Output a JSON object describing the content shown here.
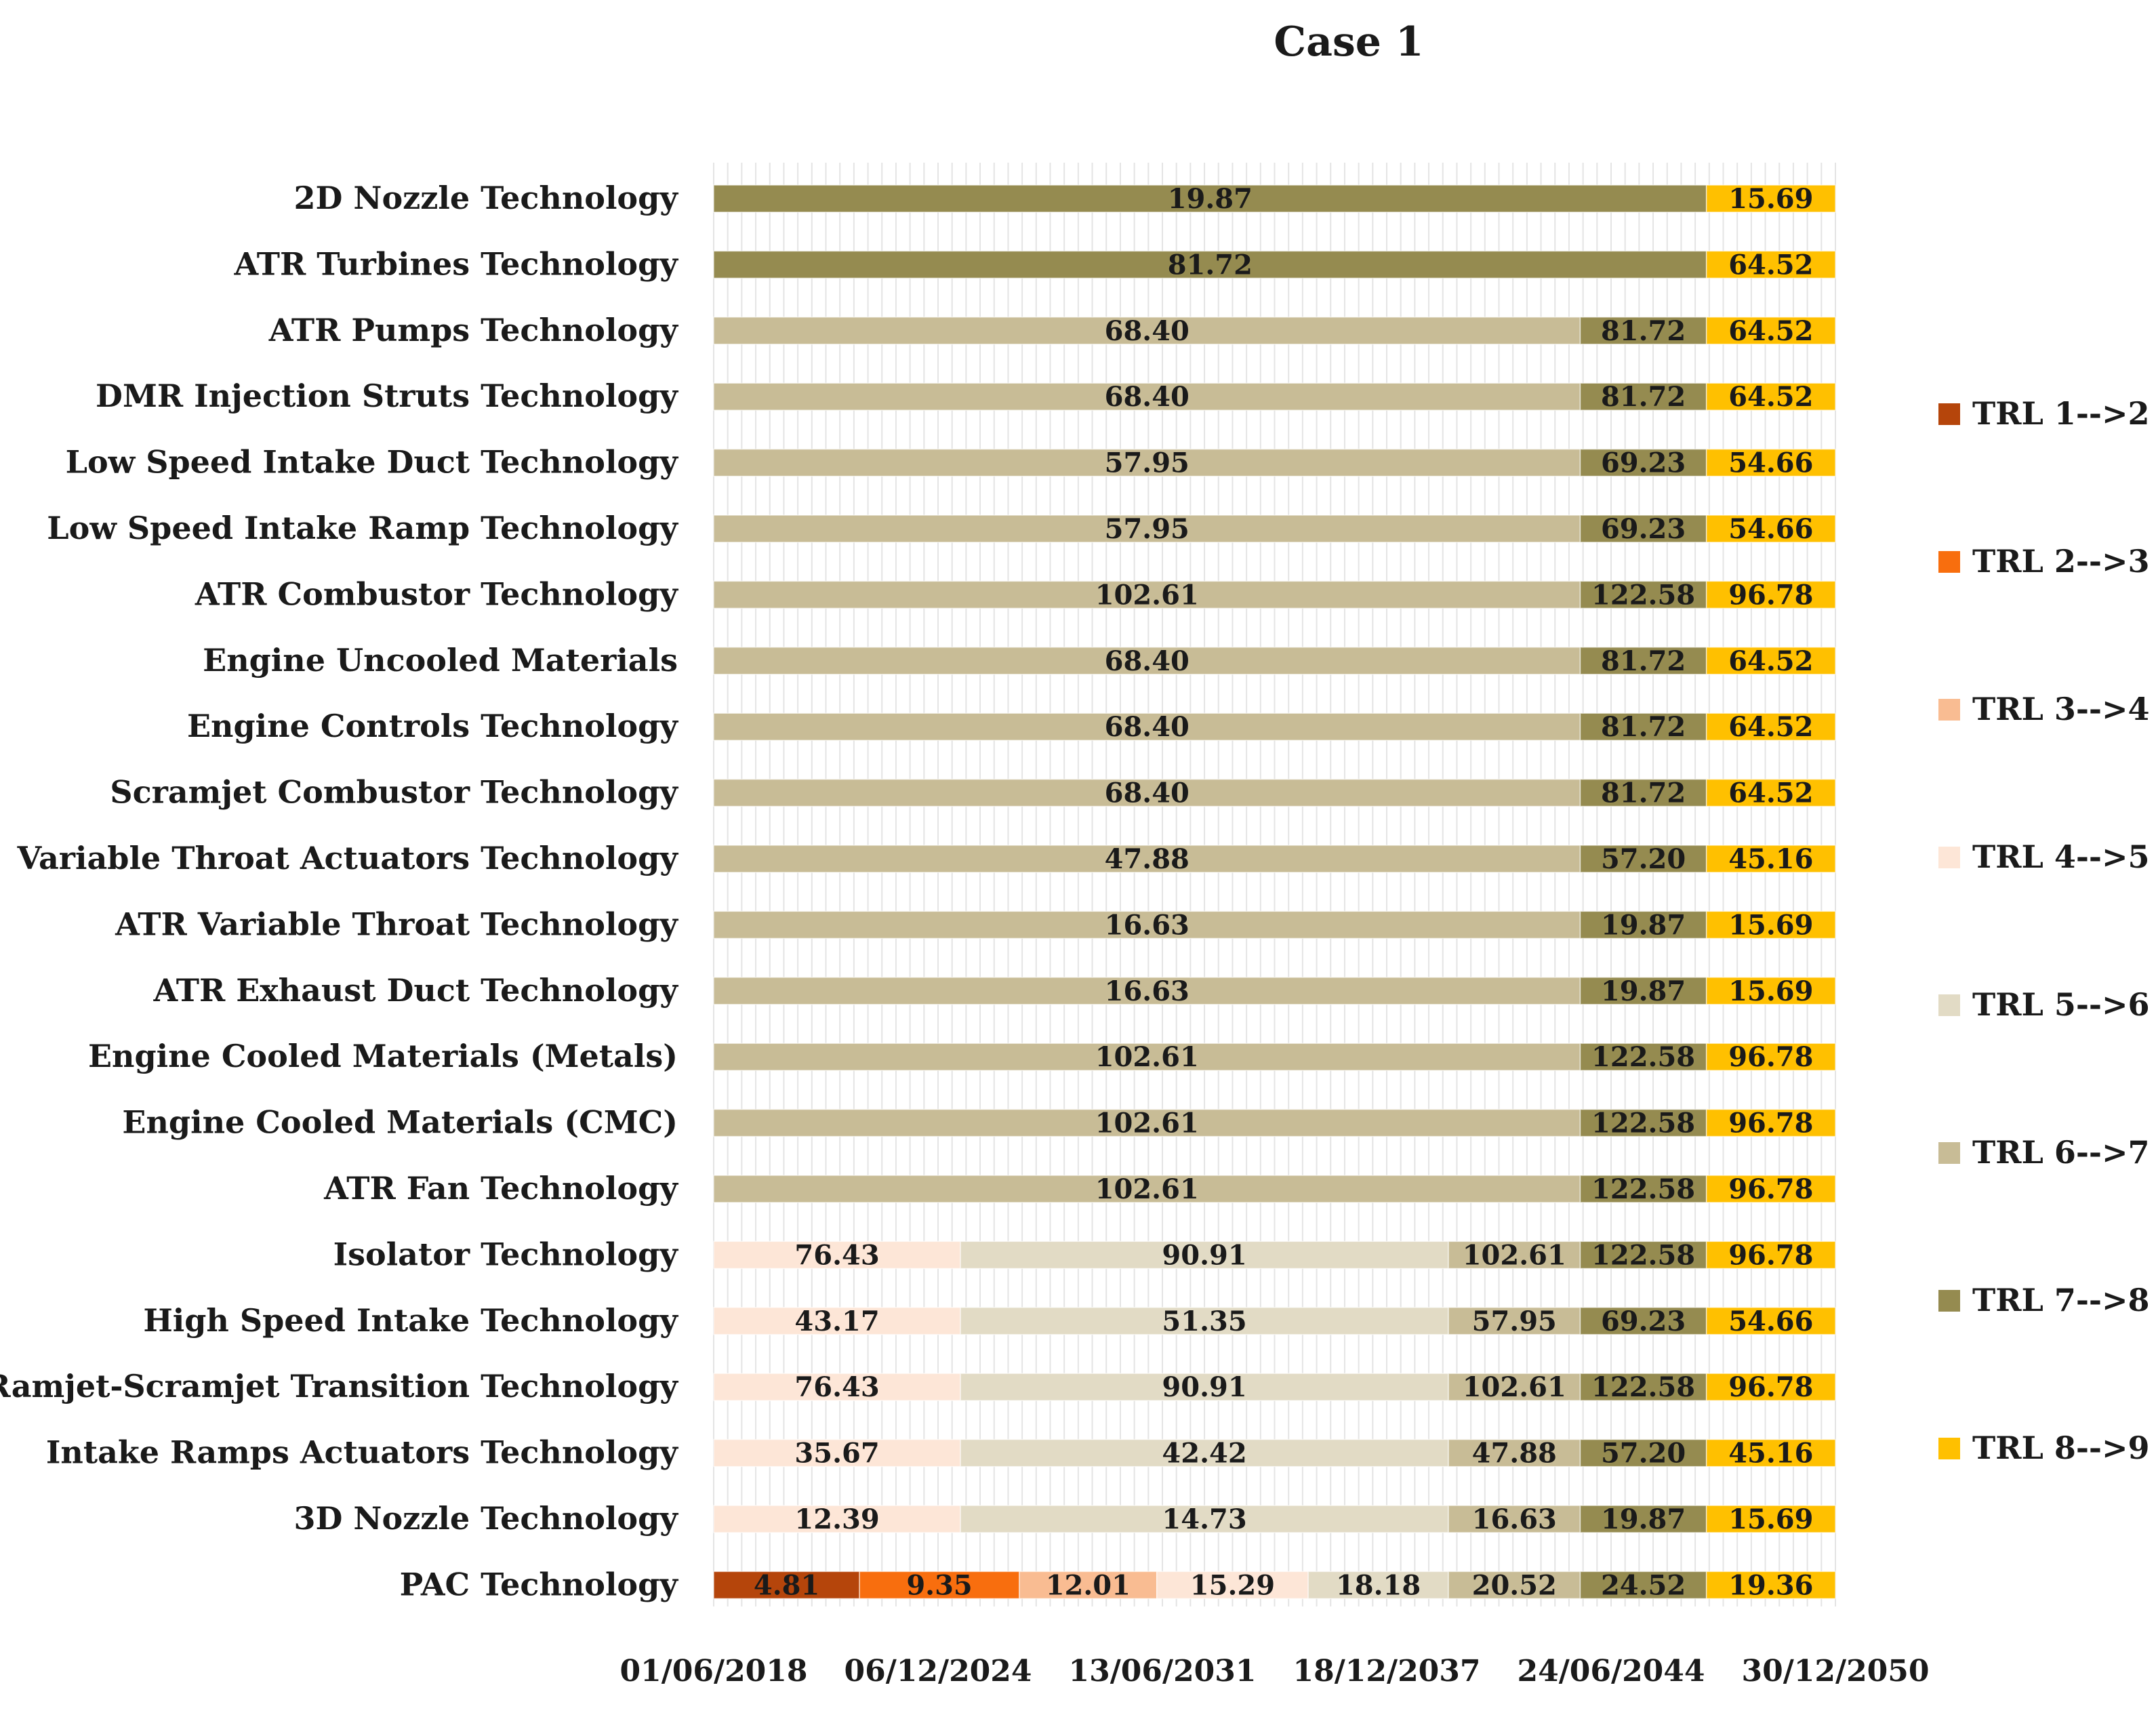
{
  "chart_data": {
    "type": "bar",
    "orientation": "horizontal-stacked-gantt",
    "title": "Case 1",
    "xlabel": "",
    "ylabel": "",
    "x_ticks": [
      "01/06/2018",
      "06/12/2024",
      "13/06/2031",
      "18/12/2037",
      "24/06/2044",
      "30/12/2050"
    ],
    "x_tick_values": [
      0,
      40,
      80,
      120,
      160,
      200
    ],
    "xlim": [
      0,
      200
    ],
    "grid": true,
    "legend_position": "right",
    "series": [
      {
        "name": "TRL 1-->2",
        "color": "#b5450b"
      },
      {
        "name": "TRL 2-->3",
        "color": "#f86e0e"
      },
      {
        "name": "TRL 3-->4",
        "color": "#f9bc92"
      },
      {
        "name": "TRL 4-->5",
        "color": "#fde6d7"
      },
      {
        "name": "TRL 5-->6",
        "color": "#e2dbc5"
      },
      {
        "name": "TRL 6-->7",
        "color": "#c8bc96"
      },
      {
        "name": "TRL 7-->8",
        "color": "#958b50"
      },
      {
        "name": "TRL 8-->9",
        "color": "#ffc000"
      }
    ],
    "categories": [
      {
        "name": "2D Nozzle Technology",
        "segments": [
          {
            "series": 6,
            "start": 0,
            "end": 177,
            "label": "19.87"
          },
          {
            "series": 7,
            "start": 177,
            "end": 200,
            "label": "15.69"
          }
        ]
      },
      {
        "name": "ATR Turbines Technology",
        "segments": [
          {
            "series": 6,
            "start": 0,
            "end": 177,
            "label": "81.72"
          },
          {
            "series": 7,
            "start": 177,
            "end": 200,
            "label": "64.52"
          }
        ]
      },
      {
        "name": "ATR Pumps Technology",
        "segments": [
          {
            "series": 5,
            "start": 0,
            "end": 154.5,
            "label": "68.40"
          },
          {
            "series": 6,
            "start": 154.5,
            "end": 177,
            "label": "81.72"
          },
          {
            "series": 7,
            "start": 177,
            "end": 200,
            "label": "64.52"
          }
        ]
      },
      {
        "name": "DMR Injection Struts Technology",
        "segments": [
          {
            "series": 5,
            "start": 0,
            "end": 154.5,
            "label": "68.40"
          },
          {
            "series": 6,
            "start": 154.5,
            "end": 177,
            "label": "81.72"
          },
          {
            "series": 7,
            "start": 177,
            "end": 200,
            "label": "64.52"
          }
        ]
      },
      {
        "name": "Low Speed Intake Duct Technology",
        "segments": [
          {
            "series": 5,
            "start": 0,
            "end": 154.5,
            "label": "57.95"
          },
          {
            "series": 6,
            "start": 154.5,
            "end": 177,
            "label": "69.23"
          },
          {
            "series": 7,
            "start": 177,
            "end": 200,
            "label": "54.66"
          }
        ]
      },
      {
        "name": "Low Speed Intake Ramp Technology",
        "segments": [
          {
            "series": 5,
            "start": 0,
            "end": 154.5,
            "label": "57.95"
          },
          {
            "series": 6,
            "start": 154.5,
            "end": 177,
            "label": "69.23"
          },
          {
            "series": 7,
            "start": 177,
            "end": 200,
            "label": "54.66"
          }
        ]
      },
      {
        "name": "ATR Combustor Technology",
        "segments": [
          {
            "series": 5,
            "start": 0,
            "end": 154.5,
            "label": "102.61"
          },
          {
            "series": 6,
            "start": 154.5,
            "end": 177,
            "label": "122.58"
          },
          {
            "series": 7,
            "start": 177,
            "end": 200,
            "label": "96.78"
          }
        ]
      },
      {
        "name": "Engine Uncooled Materials",
        "segments": [
          {
            "series": 5,
            "start": 0,
            "end": 154.5,
            "label": "68.40"
          },
          {
            "series": 6,
            "start": 154.5,
            "end": 177,
            "label": "81.72"
          },
          {
            "series": 7,
            "start": 177,
            "end": 200,
            "label": "64.52"
          }
        ]
      },
      {
        "name": "Engine Controls Technology",
        "segments": [
          {
            "series": 5,
            "start": 0,
            "end": 154.5,
            "label": "68.40"
          },
          {
            "series": 6,
            "start": 154.5,
            "end": 177,
            "label": "81.72"
          },
          {
            "series": 7,
            "start": 177,
            "end": 200,
            "label": "64.52"
          }
        ]
      },
      {
        "name": "Scramjet Combustor Technology",
        "segments": [
          {
            "series": 5,
            "start": 0,
            "end": 154.5,
            "label": "68.40"
          },
          {
            "series": 6,
            "start": 154.5,
            "end": 177,
            "label": "81.72"
          },
          {
            "series": 7,
            "start": 177,
            "end": 200,
            "label": "64.52"
          }
        ]
      },
      {
        "name": "Variable Throat Actuators Technology",
        "segments": [
          {
            "series": 5,
            "start": 0,
            "end": 154.5,
            "label": "47.88"
          },
          {
            "series": 6,
            "start": 154.5,
            "end": 177,
            "label": "57.20"
          },
          {
            "series": 7,
            "start": 177,
            "end": 200,
            "label": "45.16"
          }
        ]
      },
      {
        "name": "ATR Variable Throat Technology",
        "segments": [
          {
            "series": 5,
            "start": 0,
            "end": 154.5,
            "label": "16.63"
          },
          {
            "series": 6,
            "start": 154.5,
            "end": 177,
            "label": "19.87"
          },
          {
            "series": 7,
            "start": 177,
            "end": 200,
            "label": "15.69"
          }
        ]
      },
      {
        "name": "ATR Exhaust Duct Technology",
        "segments": [
          {
            "series": 5,
            "start": 0,
            "end": 154.5,
            "label": "16.63"
          },
          {
            "series": 6,
            "start": 154.5,
            "end": 177,
            "label": "19.87"
          },
          {
            "series": 7,
            "start": 177,
            "end": 200,
            "label": "15.69"
          }
        ]
      },
      {
        "name": "Engine Cooled Materials (Metals)",
        "segments": [
          {
            "series": 5,
            "start": 0,
            "end": 154.5,
            "label": "102.61"
          },
          {
            "series": 6,
            "start": 154.5,
            "end": 177,
            "label": "122.58"
          },
          {
            "series": 7,
            "start": 177,
            "end": 200,
            "label": "96.78"
          }
        ]
      },
      {
        "name": "Engine Cooled Materials (CMC)",
        "segments": [
          {
            "series": 5,
            "start": 0,
            "end": 154.5,
            "label": "102.61"
          },
          {
            "series": 6,
            "start": 154.5,
            "end": 177,
            "label": "122.58"
          },
          {
            "series": 7,
            "start": 177,
            "end": 200,
            "label": "96.78"
          }
        ]
      },
      {
        "name": "ATR Fan Technology",
        "segments": [
          {
            "series": 5,
            "start": 0,
            "end": 154.5,
            "label": "102.61"
          },
          {
            "series": 6,
            "start": 154.5,
            "end": 177,
            "label": "122.58"
          },
          {
            "series": 7,
            "start": 177,
            "end": 200,
            "label": "96.78"
          }
        ]
      },
      {
        "name": "Isolator Technology",
        "segments": [
          {
            "series": 3,
            "start": 0,
            "end": 44,
            "label": "76.43"
          },
          {
            "series": 4,
            "start": 44,
            "end": 131,
            "label": "90.91"
          },
          {
            "series": 5,
            "start": 131,
            "end": 154.5,
            "label": "102.61"
          },
          {
            "series": 6,
            "start": 154.5,
            "end": 177,
            "label": "122.58"
          },
          {
            "series": 7,
            "start": 177,
            "end": 200,
            "label": "96.78"
          }
        ]
      },
      {
        "name": "High Speed Intake Technology",
        "segments": [
          {
            "series": 3,
            "start": 0,
            "end": 44,
            "label": "43.17"
          },
          {
            "series": 4,
            "start": 44,
            "end": 131,
            "label": "51.35"
          },
          {
            "series": 5,
            "start": 131,
            "end": 154.5,
            "label": "57.95"
          },
          {
            "series": 6,
            "start": 154.5,
            "end": 177,
            "label": "69.23"
          },
          {
            "series": 7,
            "start": 177,
            "end": 200,
            "label": "54.66"
          }
        ]
      },
      {
        "name": "Ramjet-Scramjet Transition Technology",
        "segments": [
          {
            "series": 3,
            "start": 0,
            "end": 44,
            "label": "76.43"
          },
          {
            "series": 4,
            "start": 44,
            "end": 131,
            "label": "90.91"
          },
          {
            "series": 5,
            "start": 131,
            "end": 154.5,
            "label": "102.61"
          },
          {
            "series": 6,
            "start": 154.5,
            "end": 177,
            "label": "122.58"
          },
          {
            "series": 7,
            "start": 177,
            "end": 200,
            "label": "96.78"
          }
        ]
      },
      {
        "name": "Intake Ramps Actuators Technology",
        "segments": [
          {
            "series": 3,
            "start": 0,
            "end": 44,
            "label": "35.67"
          },
          {
            "series": 4,
            "start": 44,
            "end": 131,
            "label": "42.42"
          },
          {
            "series": 5,
            "start": 131,
            "end": 154.5,
            "label": "47.88"
          },
          {
            "series": 6,
            "start": 154.5,
            "end": 177,
            "label": "57.20"
          },
          {
            "series": 7,
            "start": 177,
            "end": 200,
            "label": "45.16"
          }
        ]
      },
      {
        "name": "3D Nozzle Technology",
        "segments": [
          {
            "series": 3,
            "start": 0,
            "end": 44,
            "label": "12.39"
          },
          {
            "series": 4,
            "start": 44,
            "end": 131,
            "label": "14.73"
          },
          {
            "series": 5,
            "start": 131,
            "end": 154.5,
            "label": "16.63"
          },
          {
            "series": 6,
            "start": 154.5,
            "end": 177,
            "label": "19.87"
          },
          {
            "series": 7,
            "start": 177,
            "end": 200,
            "label": "15.69"
          }
        ]
      },
      {
        "name": "PAC Technology",
        "segments": [
          {
            "series": 0,
            "start": 0,
            "end": 26,
            "label": "4.81"
          },
          {
            "series": 1,
            "start": 26,
            "end": 54.5,
            "label": "9.35"
          },
          {
            "series": 2,
            "start": 54.5,
            "end": 79,
            "label": "12.01"
          },
          {
            "series": 3,
            "start": 79,
            "end": 106,
            "label": "15.29"
          },
          {
            "series": 4,
            "start": 106,
            "end": 131,
            "label": "18.18"
          },
          {
            "series": 5,
            "start": 131,
            "end": 154.5,
            "label": "20.52"
          },
          {
            "series": 6,
            "start": 154.5,
            "end": 177,
            "label": "24.52"
          },
          {
            "series": 7,
            "start": 177,
            "end": 200,
            "label": "19.36"
          }
        ]
      }
    ]
  }
}
